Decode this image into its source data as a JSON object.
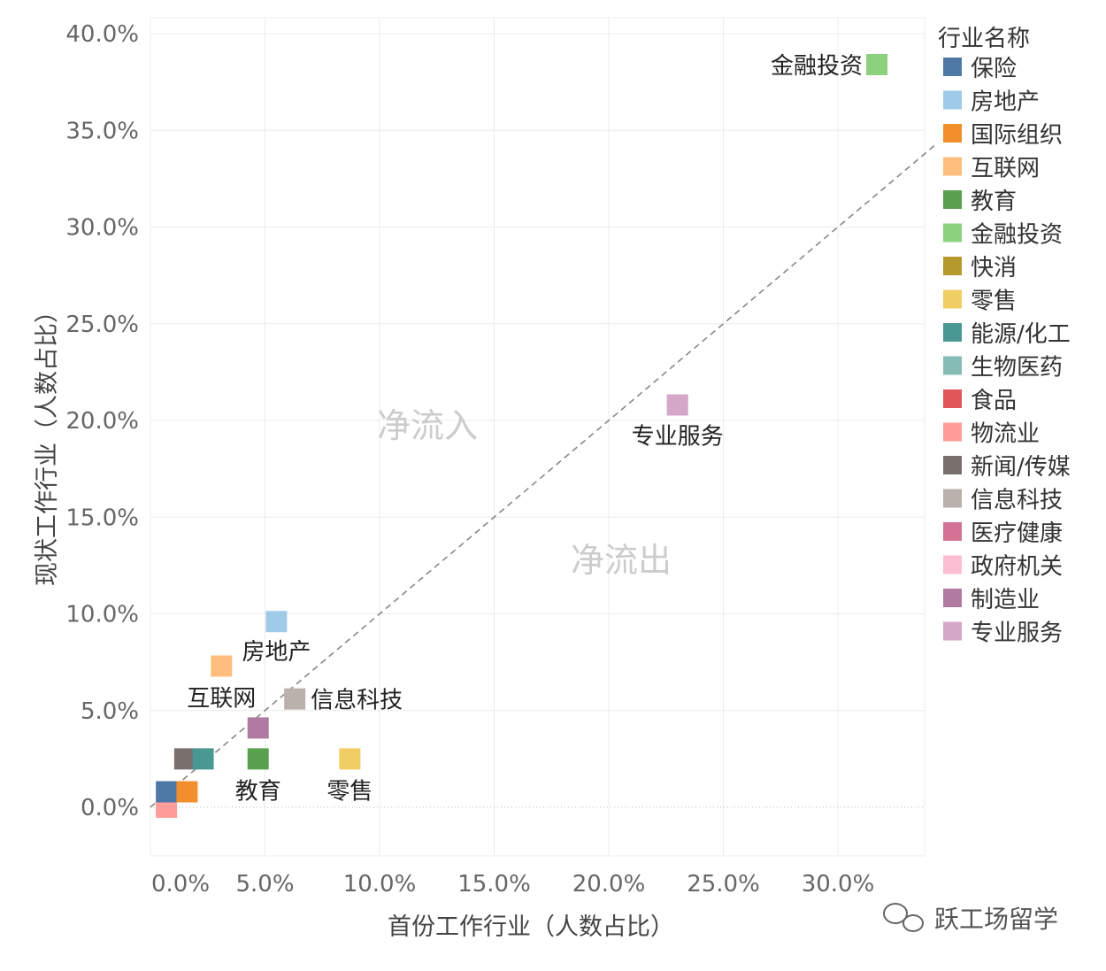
{
  "chart_data": {
    "type": "scatter",
    "xlabel": "首份工作行业（人数占比）",
    "ylabel": "现状工作行业（人数占比）",
    "xlim": [
      0,
      34
    ],
    "ylim": [
      -2.5,
      41
    ],
    "x_ticks": [
      0,
      5,
      10,
      15,
      20,
      25,
      30
    ],
    "x_tick_labels": [
      "0.0%",
      "5.0%",
      "10.0%",
      "15.0%",
      "20.0%",
      "25.0%",
      "30.0%"
    ],
    "y_ticks": [
      0,
      5,
      10,
      15,
      20,
      25,
      30,
      35,
      40
    ],
    "y_tick_labels": [
      "0.0%",
      "5.0%",
      "10.0%",
      "15.0%",
      "20.0%",
      "25.0%",
      "30.0%",
      "35.0%",
      "40.0%"
    ],
    "grid": true,
    "reference_line": "y = x (dashed)",
    "region_labels": {
      "above": "净流入",
      "below": "净流出"
    },
    "legend": {
      "title": "行业名称",
      "position": "right",
      "entries": [
        {
          "name": "保险",
          "color": "#4E79A7"
        },
        {
          "name": "房地产",
          "color": "#A0CBE8"
        },
        {
          "name": "国际组织",
          "color": "#F28E2B"
        },
        {
          "name": "互联网",
          "color": "#FFBE7D"
        },
        {
          "name": "教育",
          "color": "#59A14F"
        },
        {
          "name": "金融投资",
          "color": "#8CD17D"
        },
        {
          "name": "快消",
          "color": "#B6992D"
        },
        {
          "name": "零售",
          "color": "#F1CE63"
        },
        {
          "name": "能源/化工",
          "color": "#499894"
        },
        {
          "name": "生物医药",
          "color": "#86BCB6"
        },
        {
          "name": "食品",
          "color": "#E15759"
        },
        {
          "name": "物流业",
          "color": "#FF9D9A"
        },
        {
          "name": "新闻/传媒",
          "color": "#79706E"
        },
        {
          "name": "信息科技",
          "color": "#BAB0AC"
        },
        {
          "name": "医疗健康",
          "color": "#D37295"
        },
        {
          "name": "政府机关",
          "color": "#FABFD2"
        },
        {
          "name": "制造业",
          "color": "#B07AA1"
        },
        {
          "name": "专业服务",
          "color": "#D4A6C8"
        }
      ]
    },
    "points": [
      {
        "name": "物流业",
        "x": 0.7,
        "y": 0.0,
        "color": "#FF9D9A",
        "label": ""
      },
      {
        "name": "保险",
        "x": 0.7,
        "y": 0.8,
        "color": "#4E79A7",
        "label": ""
      },
      {
        "name": "国际组织",
        "x": 1.6,
        "y": 0.8,
        "color": "#F28E2B",
        "label": ""
      },
      {
        "name": "新闻/传媒",
        "x": 1.5,
        "y": 2.5,
        "color": "#79706E",
        "label": ""
      },
      {
        "name": "能源/化工",
        "x": 2.3,
        "y": 2.5,
        "color": "#499894",
        "label": ""
      },
      {
        "name": "教育",
        "x": 4.7,
        "y": 2.5,
        "color": "#59A14F",
        "label": "教育"
      },
      {
        "name": "零售",
        "x": 8.7,
        "y": 2.5,
        "color": "#F1CE63",
        "label": "零售"
      },
      {
        "name": "制造业",
        "x": 4.7,
        "y": 4.1,
        "color": "#B07AA1",
        "label": ""
      },
      {
        "name": "信息科技",
        "x": 6.3,
        "y": 5.6,
        "color": "#BAB0AC",
        "label": "信息科技"
      },
      {
        "name": "互联网",
        "x": 3.1,
        "y": 7.3,
        "color": "#FFBE7D",
        "label": "互联网"
      },
      {
        "name": "房地产",
        "x": 5.5,
        "y": 9.6,
        "color": "#A0CBE8",
        "label": "房地产"
      },
      {
        "name": "专业服务",
        "x": 23.0,
        "y": 20.8,
        "color": "#D4A6C8",
        "label": "专业服务"
      },
      {
        "name": "金融投资",
        "x": 31.7,
        "y": 38.4,
        "color": "#8CD17D",
        "label": "金融投资"
      }
    ]
  },
  "watermark": "跃工场留学"
}
